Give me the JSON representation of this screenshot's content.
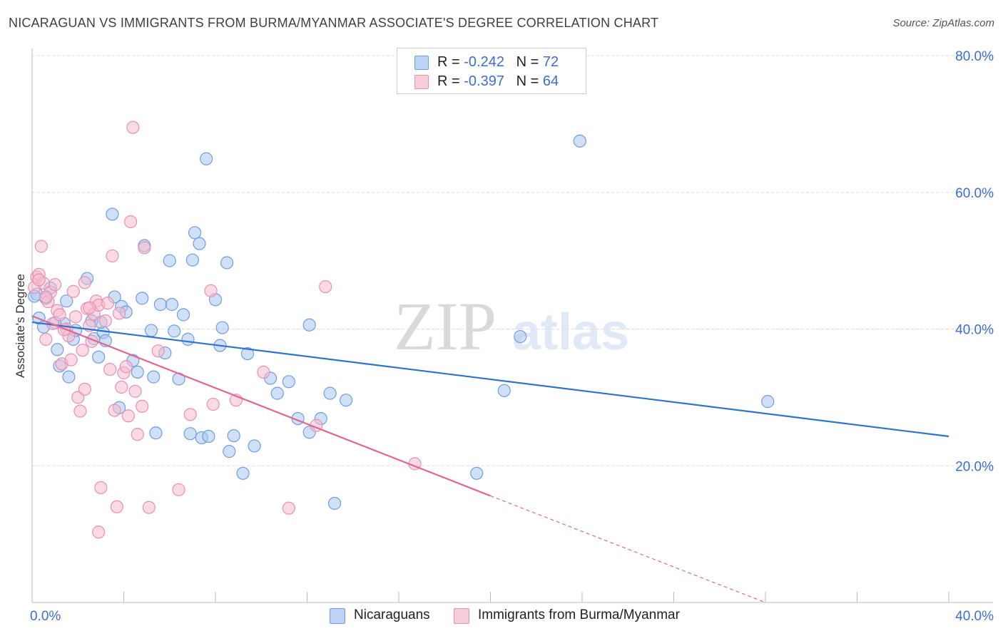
{
  "title": "NICARAGUAN VS IMMIGRANTS FROM BURMA/MYANMAR ASSOCIATE'S DEGREE CORRELATION CHART",
  "source": "Source: ZipAtlas.com",
  "watermark": {
    "zip": "ZIP",
    "atlas": "atlas"
  },
  "legend": {
    "series1": {
      "r_label": "R = ",
      "r_value": "-0.242",
      "n_label": "N = ",
      "n_value": "72"
    },
    "series2": {
      "r_label": "R = ",
      "r_value": "-0.397",
      "n_label": "N = ",
      "n_value": "64"
    }
  },
  "bottom_legend": {
    "series1": "Nicaraguans",
    "series2": "Immigrants from Burma/Myanmar"
  },
  "colors": {
    "blue_fill": "#a9c6f0",
    "blue_stroke": "#6f9de0",
    "blue_line": "#2f72d0",
    "pink_fill": "#f6bcd0",
    "pink_stroke": "#ea8fae",
    "pink_line": "#e0688f",
    "axis_text": "#3a6fd2",
    "grid": "#dddddd"
  },
  "chart_data": {
    "type": "scatter",
    "title": "NICARAGUAN VS IMMIGRANTS FROM BURMA/MYANMAR ASSOCIATE'S DEGREE CORRELATION CHART",
    "xlabel": "",
    "ylabel": "Associate's Degree",
    "xlim": [
      0,
      40
    ],
    "ylim": [
      0,
      80
    ],
    "x_tick_labels": [
      "0.0%",
      "40.0%"
    ],
    "y_tick_labels": [
      "20.0%",
      "40.0%",
      "60.0%",
      "80.0%"
    ],
    "y_ticks": [
      20,
      40,
      60,
      80
    ],
    "grid": true,
    "legend_position": "top-center",
    "series": [
      {
        "name": "Nicaraguans",
        "r": -0.242,
        "n": 72,
        "trend": {
          "x": [
            0,
            40
          ],
          "y": [
            41.0,
            24.3
          ],
          "dashed_from": null
        },
        "points": [
          [
            0.2,
            45.1
          ],
          [
            0.3,
            41.6
          ],
          [
            0.5,
            40.3
          ],
          [
            0.6,
            44.5
          ],
          [
            0.8,
            46.0
          ],
          [
            1.1,
            37.0
          ],
          [
            1.2,
            34.6
          ],
          [
            1.4,
            40.8
          ],
          [
            1.5,
            44.1
          ],
          [
            1.6,
            33.0
          ],
          [
            1.8,
            38.5
          ],
          [
            1.9,
            39.8
          ],
          [
            2.4,
            47.4
          ],
          [
            2.6,
            41.2
          ],
          [
            2.7,
            38.6
          ],
          [
            2.9,
            35.9
          ],
          [
            3.1,
            39.5
          ],
          [
            3.2,
            38.3
          ],
          [
            3.5,
            56.8
          ],
          [
            3.6,
            44.7
          ],
          [
            3.8,
            28.5
          ],
          [
            3.9,
            43.3
          ],
          [
            4.1,
            42.5
          ],
          [
            4.4,
            35.4
          ],
          [
            4.6,
            33.7
          ],
          [
            4.8,
            44.5
          ],
          [
            4.9,
            52.2
          ],
          [
            5.2,
            39.8
          ],
          [
            5.3,
            33.0
          ],
          [
            5.4,
            24.8
          ],
          [
            5.6,
            43.6
          ],
          [
            5.8,
            36.5
          ],
          [
            6.0,
            50.0
          ],
          [
            6.1,
            43.6
          ],
          [
            6.2,
            39.7
          ],
          [
            6.4,
            32.7
          ],
          [
            6.6,
            42.1
          ],
          [
            6.8,
            38.5
          ],
          [
            6.9,
            24.7
          ],
          [
            7.0,
            50.1
          ],
          [
            7.1,
            54.1
          ],
          [
            7.3,
            52.5
          ],
          [
            7.4,
            24.1
          ],
          [
            7.7,
            24.3
          ],
          [
            7.6,
            64.9
          ],
          [
            8.0,
            44.3
          ],
          [
            8.2,
            37.6
          ],
          [
            8.3,
            40.2
          ],
          [
            8.5,
            49.7
          ],
          [
            8.6,
            22.1
          ],
          [
            8.8,
            24.4
          ],
          [
            9.2,
            18.9
          ],
          [
            9.4,
            36.4
          ],
          [
            9.7,
            22.9
          ],
          [
            10.4,
            32.8
          ],
          [
            10.7,
            30.6
          ],
          [
            11.2,
            32.3
          ],
          [
            11.6,
            26.9
          ],
          [
            12.1,
            40.6
          ],
          [
            12.1,
            24.9
          ],
          [
            12.6,
            26.9
          ],
          [
            13.0,
            30.6
          ],
          [
            13.2,
            14.5
          ],
          [
            13.7,
            29.6
          ],
          [
            19.4,
            18.9
          ],
          [
            20.6,
            31.0
          ],
          [
            21.3,
            38.9
          ],
          [
            23.9,
            67.5
          ],
          [
            32.1,
            29.4
          ],
          [
            1.0,
            40.9
          ],
          [
            3.0,
            41.0
          ],
          [
            0.1,
            44.8
          ]
        ]
      },
      {
        "name": "Immigrants from Burma/Myanmar",
        "r": -0.397,
        "n": 64,
        "trend": {
          "x": [
            0,
            20.0
          ],
          "y": [
            41.9,
            15.6
          ],
          "dashed_to": [
            32.0,
            0.0
          ]
        },
        "points": [
          [
            0.1,
            46.1
          ],
          [
            0.2,
            47.6
          ],
          [
            0.3,
            48.0
          ],
          [
            0.4,
            52.1
          ],
          [
            0.5,
            46.7
          ],
          [
            0.6,
            38.5
          ],
          [
            0.7,
            44.0
          ],
          [
            0.8,
            45.4
          ],
          [
            0.9,
            40.8
          ],
          [
            1.0,
            46.5
          ],
          [
            1.1,
            42.7
          ],
          [
            1.2,
            42.1
          ],
          [
            1.3,
            34.9
          ],
          [
            1.5,
            40.0
          ],
          [
            1.6,
            39.0
          ],
          [
            1.7,
            35.5
          ],
          [
            1.8,
            45.5
          ],
          [
            1.9,
            41.8
          ],
          [
            2.0,
            30.0
          ],
          [
            2.1,
            28.0
          ],
          [
            2.2,
            36.9
          ],
          [
            2.3,
            31.2
          ],
          [
            2.4,
            43.0
          ],
          [
            2.5,
            40.5
          ],
          [
            2.6,
            38.2
          ],
          [
            2.7,
            42.2
          ],
          [
            2.8,
            44.1
          ],
          [
            2.9,
            43.5
          ],
          [
            2.9,
            10.3
          ],
          [
            3.0,
            16.8
          ],
          [
            3.2,
            41.2
          ],
          [
            3.3,
            43.8
          ],
          [
            3.4,
            34.1
          ],
          [
            3.5,
            50.7
          ],
          [
            3.6,
            28.1
          ],
          [
            3.7,
            14.0
          ],
          [
            3.8,
            42.3
          ],
          [
            3.9,
            31.5
          ],
          [
            4.0,
            33.6
          ],
          [
            4.1,
            34.5
          ],
          [
            4.2,
            27.3
          ],
          [
            4.3,
            55.7
          ],
          [
            4.4,
            69.5
          ],
          [
            4.5,
            30.9
          ],
          [
            4.6,
            24.6
          ],
          [
            4.8,
            28.7
          ],
          [
            4.9,
            51.9
          ],
          [
            5.1,
            13.9
          ],
          [
            5.5,
            36.8
          ],
          [
            6.4,
            16.5
          ],
          [
            6.9,
            27.5
          ],
          [
            7.8,
            45.6
          ],
          [
            7.9,
            29.0
          ],
          [
            8.9,
            29.6
          ],
          [
            10.1,
            33.7
          ],
          [
            11.2,
            13.8
          ],
          [
            12.4,
            25.9
          ],
          [
            12.8,
            46.2
          ],
          [
            16.7,
            20.3
          ],
          [
            0.3,
            47.2
          ],
          [
            0.6,
            44.7
          ],
          [
            1.4,
            39.9
          ],
          [
            2.5,
            43.1
          ],
          [
            2.3,
            46.8
          ]
        ]
      }
    ]
  }
}
